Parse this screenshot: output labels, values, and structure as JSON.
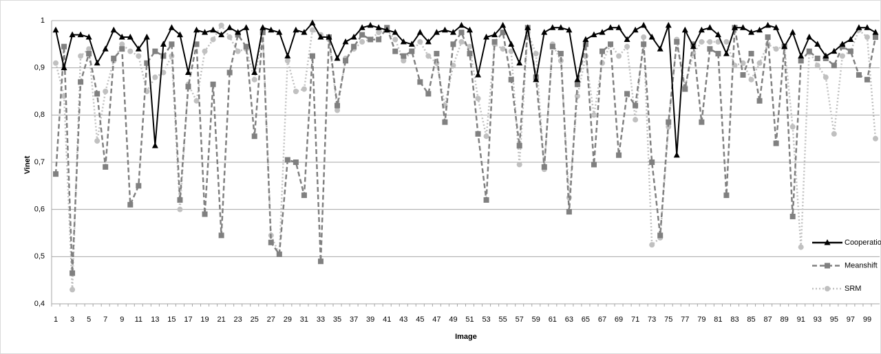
{
  "chart_data": {
    "type": "line",
    "xlabel": "Image",
    "ylabel": "Vinet",
    "categories": [
      "1",
      null,
      "3",
      null,
      "5",
      null,
      "7",
      null,
      "9",
      null,
      "11",
      null,
      "13",
      null,
      "15",
      null,
      "17",
      null,
      "19",
      null,
      "21",
      null,
      "23",
      null,
      "25",
      null,
      "27",
      null,
      "29",
      null,
      "31",
      null,
      "33",
      null,
      "35",
      null,
      "37",
      null,
      "39",
      null,
      "41",
      null,
      "43",
      null,
      "45",
      null,
      "47",
      null,
      "49",
      null,
      "51",
      null,
      "53",
      null,
      "55",
      null,
      "57",
      null,
      "59",
      null,
      "61",
      null,
      "63",
      null,
      "65",
      null,
      "67",
      null,
      "69",
      null,
      "71",
      null,
      "73",
      null,
      "75",
      null,
      "77",
      null,
      "79",
      null,
      "81",
      null,
      "83",
      null,
      "85",
      null,
      "87",
      null,
      "89",
      null,
      "91",
      null,
      "93",
      null,
      "95",
      null,
      "97",
      null,
      "99",
      null
    ],
    "ylim": [
      0.4,
      1
    ],
    "yticks": [
      {
        "value": 0.4,
        "label": "0,4"
      },
      {
        "value": 0.5,
        "label": "0,5"
      },
      {
        "value": 0.6,
        "label": "0,6"
      },
      {
        "value": 0.7,
        "label": "0,7"
      },
      {
        "value": 0.8,
        "label": "0,8"
      },
      {
        "value": 0.9,
        "label": "0,9"
      },
      1
    ],
    "grid": true,
    "legend": "right",
    "series": [
      {
        "name": "Cooperation",
        "color": "#000000",
        "line_style": "solid",
        "marker": "triangle",
        "values": [
          0.98,
          0.9,
          0.97,
          0.97,
          0.965,
          0.91,
          0.94,
          0.98,
          0.965,
          0.965,
          0.94,
          0.965,
          0.735,
          0.95,
          0.985,
          0.97,
          0.89,
          0.98,
          0.975,
          0.98,
          0.97,
          0.985,
          0.975,
          0.985,
          0.89,
          0.985,
          0.98,
          0.975,
          0.925,
          0.98,
          0.975,
          0.995,
          0.965,
          0.965,
          0.92,
          0.955,
          0.965,
          0.985,
          0.99,
          0.985,
          0.98,
          0.975,
          0.955,
          0.95,
          0.975,
          0.955,
          0.975,
          0.98,
          0.975,
          0.99,
          0.98,
          0.885,
          0.965,
          0.97,
          0.99,
          0.95,
          0.91,
          0.985,
          0.875,
          0.975,
          0.985,
          0.985,
          0.98,
          0.875,
          0.96,
          0.97,
          0.975,
          0.985,
          0.985,
          0.96,
          0.98,
          0.99,
          0.965,
          0.94,
          0.99,
          0.715,
          0.98,
          0.945,
          0.98,
          0.985,
          0.97,
          0.93,
          0.985,
          0.985,
          0.975,
          0.98,
          0.99,
          0.985,
          0.945,
          0.975,
          0.925,
          0.965,
          0.95,
          0.925,
          0.935,
          0.95,
          0.96,
          0.985,
          0.985,
          0.975
        ]
      },
      {
        "name": "Meanshift",
        "color": "#808080",
        "line_style": "dashed",
        "marker": "square",
        "values": [
          0.675,
          0.945,
          0.465,
          0.87,
          0.93,
          0.845,
          0.69,
          0.92,
          0.94,
          0.61,
          0.65,
          0.91,
          0.935,
          0.925,
          0.95,
          0.62,
          0.86,
          0.95,
          0.59,
          0.865,
          0.545,
          0.89,
          0.97,
          0.945,
          0.755,
          0.975,
          0.53,
          0.505,
          0.705,
          0.7,
          0.63,
          0.925,
          0.49,
          0.965,
          0.82,
          0.915,
          0.945,
          0.97,
          0.96,
          0.96,
          0.985,
          0.935,
          0.925,
          0.935,
          0.87,
          0.845,
          0.93,
          0.785,
          0.95,
          0.975,
          0.93,
          0.76,
          0.62,
          0.955,
          0.975,
          0.875,
          0.735,
          0.985,
          0.88,
          0.69,
          0.945,
          0.93,
          0.595,
          0.865,
          0.95,
          0.695,
          0.935,
          0.95,
          0.715,
          0.845,
          0.82,
          0.95,
          0.7,
          0.545,
          0.785,
          0.955,
          0.855,
          0.95,
          0.785,
          0.94,
          0.93,
          0.63,
          0.985,
          0.885,
          0.93,
          0.83,
          0.965,
          0.74,
          0.945,
          0.585,
          0.915,
          0.935,
          0.92,
          0.92,
          0.905,
          0.945,
          0.935,
          0.885,
          0.875,
          0.965
        ]
      },
      {
        "name": "SRM",
        "color": "#c0c0c0",
        "line_style": "dotted",
        "marker": "circle",
        "values": [
          0.91,
          0.84,
          0.43,
          0.925,
          0.94,
          0.745,
          0.85,
          0.915,
          0.95,
          0.935,
          0.925,
          0.85,
          0.88,
          0.89,
          0.925,
          0.6,
          0.865,
          0.83,
          0.935,
          0.96,
          0.99,
          0.965,
          0.935,
          0.94,
          0.875,
          0.975,
          0.545,
          0.505,
          0.915,
          0.85,
          0.855,
          0.98,
          0.97,
          0.96,
          0.81,
          0.92,
          0.94,
          0.955,
          0.96,
          0.975,
          0.98,
          0.96,
          0.915,
          0.935,
          0.955,
          0.925,
          0.91,
          0.82,
          0.905,
          0.955,
          0.945,
          0.835,
          0.755,
          0.95,
          0.94,
          0.935,
          0.695,
          0.975,
          0.93,
          0.685,
          0.95,
          0.915,
          0.625,
          0.84,
          0.925,
          0.8,
          0.91,
          0.95,
          0.925,
          0.945,
          0.79,
          0.965,
          0.525,
          0.54,
          0.775,
          0.96,
          0.86,
          0.93,
          0.955,
          0.955,
          0.955,
          0.955,
          0.905,
          0.91,
          0.875,
          0.91,
          0.95,
          0.94,
          0.945,
          0.775,
          0.52,
          0.935,
          0.905,
          0.88,
          0.76,
          0.925,
          0.935,
          0.98,
          0.965,
          0.75
        ]
      }
    ]
  }
}
